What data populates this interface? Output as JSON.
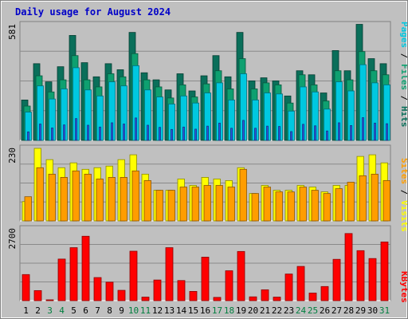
{
  "chart_data": {
    "title": "Daily usage for August 2024",
    "type": "bar",
    "colors": {
      "pages": "#00c8e0",
      "files": "#0ea070",
      "hits": "#0a6f5a",
      "pages_inner": "#2a5ae8",
      "visits": "#ffff00",
      "sites": "#ff9d00",
      "kbytes": "#ff0000",
      "weekend_day": "#007f3f",
      "weekday": "#000000",
      "panel_bg": "#c0c0c0",
      "title": "#0000c8"
    },
    "right_labels": {
      "top": [
        {
          "text": "Pages",
          "color": "#00c8e0"
        },
        {
          "text": " / ",
          "color": "#000000"
        },
        {
          "text": "Files",
          "color": "#0ea070"
        },
        {
          "text": " / ",
          "color": "#000000"
        },
        {
          "text": "Hits",
          "color": "#0a6f5a"
        }
      ],
      "middle": [
        {
          "text": "Sites",
          "color": "#ff9d00"
        },
        {
          "text": " / ",
          "color": "#000000"
        },
        {
          "text": "Visits",
          "color": "#ffff00"
        }
      ],
      "bottom": [
        {
          "text": "KBytes",
          "color": "#ff0000"
        }
      ]
    },
    "days": [
      "1",
      "2",
      "3",
      "4",
      "5",
      "6",
      "7",
      "8",
      "9",
      "10",
      "11",
      "12",
      "13",
      "14",
      "15",
      "16",
      "17",
      "18",
      "19",
      "20",
      "21",
      "22",
      "23",
      "24",
      "25",
      "26",
      "27",
      "28",
      "29",
      "30",
      "31"
    ],
    "weekend_days": [
      "3",
      "4",
      "10",
      "11",
      "17",
      "18",
      "24",
      "25",
      "31"
    ],
    "panels": [
      {
        "id": "hits",
        "ymax": 581,
        "ymax_label": "581",
        "series": [
          {
            "name": "Hits",
            "values": [
              200,
              380,
              290,
              365,
              520,
              385,
              315,
              380,
              350,
              535,
              335,
              300,
              250,
              330,
              245,
              320,
              420,
              315,
              535,
              295,
              310,
              295,
              220,
              345,
              325,
              235,
              445,
              345,
              575,
              405,
              380
            ]
          },
          {
            "name": "Files",
            "values": [
              170,
              320,
              240,
              300,
              420,
              300,
              265,
              330,
              315,
              430,
              300,
              265,
              210,
              275,
              215,
              280,
              345,
              255,
              405,
              255,
              285,
              275,
              185,
              325,
              275,
              195,
              345,
              300,
              440,
              345,
              325
            ]
          },
          {
            "name": "Pages",
            "values": [
              140,
              270,
              205,
              255,
              360,
              250,
              220,
              290,
              270,
              370,
              250,
              215,
              180,
              220,
              185,
              235,
              285,
              200,
              330,
              200,
              235,
              230,
              145,
              265,
              240,
              155,
              290,
              245,
              375,
              285,
              275
            ]
          }
        ]
      },
      {
        "id": "visits",
        "ymax": 230,
        "ymax_label": "230",
        "series": [
          {
            "name": "Visits",
            "values": [
              60,
              225,
              190,
              165,
              180,
              160,
              165,
              170,
              190,
              205,
              145,
              95,
              95,
              130,
              110,
              135,
              130,
              125,
              165,
              85,
              110,
              95,
              95,
              110,
              105,
              90,
              110,
              110,
              200,
              205,
              180
            ]
          },
          {
            "name": "Sites",
            "values": [
              75,
              165,
              145,
              135,
              155,
              145,
              130,
              135,
              135,
              155,
              125,
              95,
              95,
              105,
              105,
              110,
              110,
              105,
              160,
              85,
              105,
              90,
              90,
              105,
              95,
              85,
              100,
              120,
              140,
              145,
              125
            ]
          }
        ]
      },
      {
        "id": "kbytes",
        "ymax": 2700,
        "ymax_label": "2700",
        "series": [
          {
            "name": "KBytes",
            "values": [
              960,
              370,
              30,
              1530,
              1950,
              2370,
              850,
              680,
              380,
              1820,
              130,
              760,
              1950,
              740,
              340,
              1600,
              120,
              1100,
              1810,
              140,
              400,
              130,
              980,
              1260,
              280,
              520,
              1520,
              2470,
              1840,
              1550,
              2160
            ]
          }
        ]
      }
    ]
  }
}
